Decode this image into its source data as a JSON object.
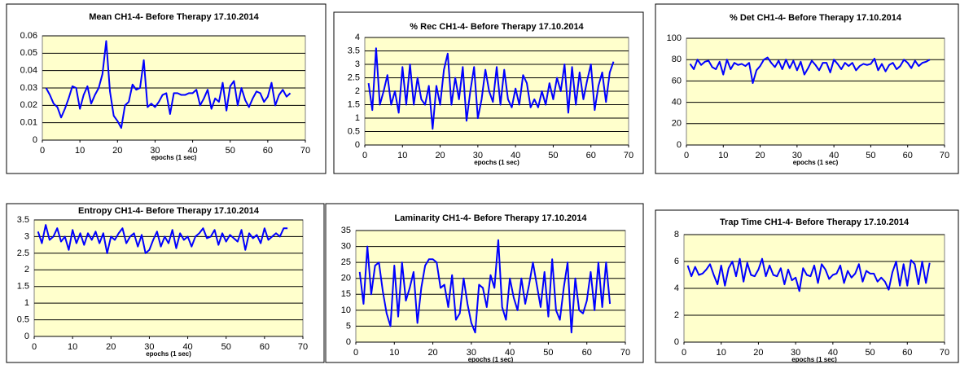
{
  "chart_data": [
    {
      "type": "line",
      "title": "Mean CH1-4- Before Therapy 17.10.2014",
      "x_label": "epochs (1 sec)",
      "x": [
        1,
        2,
        3,
        4,
        5,
        6,
        7,
        8,
        9,
        10,
        11,
        12,
        13,
        14,
        15,
        16,
        17,
        18,
        19,
        20,
        21,
        22,
        23,
        24,
        25,
        26,
        27,
        28,
        29,
        30,
        31,
        32,
        33,
        34,
        35,
        36,
        37,
        38,
        39,
        40,
        41,
        42,
        43,
        44,
        45,
        46,
        47,
        48,
        49,
        50,
        51,
        52,
        53,
        54,
        55,
        56,
        57,
        58,
        59,
        60,
        61,
        62,
        63,
        64,
        65,
        66
      ],
      "series": [
        {
          "color": "#0000ff",
          "values": [
            0.03,
            0.026,
            0.021,
            0.019,
            0.013,
            0.018,
            0.024,
            0.031,
            0.03,
            0.018,
            0.026,
            0.031,
            0.021,
            0.026,
            0.03,
            0.038,
            0.057,
            0.028,
            0.014,
            0.011,
            0.007,
            0.02,
            0.022,
            0.032,
            0.029,
            0.03,
            0.046,
            0.019,
            0.021,
            0.019,
            0.022,
            0.026,
            0.027,
            0.015,
            0.027,
            0.027,
            0.026,
            0.026,
            0.027,
            0.027,
            0.029,
            0.02,
            0.024,
            0.029,
            0.018,
            0.024,
            0.022,
            0.033,
            0.017,
            0.031,
            0.034,
            0.02,
            0.03,
            0.023,
            0.019,
            0.024,
            0.028,
            0.027,
            0.022,
            0.025,
            0.033,
            0.02,
            0.026,
            0.029,
            0.025,
            0.027
          ]
        }
      ],
      "xlim": [
        0,
        70
      ],
      "xticks": [
        0,
        10,
        20,
        30,
        40,
        50,
        60,
        70
      ],
      "ylim": [
        0,
        0.06
      ],
      "yticks": [
        0,
        0.01,
        0.02,
        0.03,
        0.04,
        0.05,
        0.06
      ],
      "grid": true
    },
    {
      "type": "line",
      "title": "% Rec CH1-4- Before Therapy 17.10.2014",
      "x_label": "epochs (1 sec)",
      "x": [
        1,
        2,
        3,
        4,
        5,
        6,
        7,
        8,
        9,
        10,
        11,
        12,
        13,
        14,
        15,
        16,
        17,
        18,
        19,
        20,
        21,
        22,
        23,
        24,
        25,
        26,
        27,
        28,
        29,
        30,
        31,
        32,
        33,
        34,
        35,
        36,
        37,
        38,
        39,
        40,
        41,
        42,
        43,
        44,
        45,
        46,
        47,
        48,
        49,
        50,
        51,
        52,
        53,
        54,
        55,
        56,
        57,
        58,
        59,
        60,
        61,
        62,
        63,
        64,
        65,
        66
      ],
      "series": [
        {
          "color": "#0000ff",
          "values": [
            2.3,
            1.3,
            3.6,
            1.5,
            2.0,
            2.6,
            1.5,
            2.0,
            1.2,
            2.9,
            1.5,
            3.0,
            1.5,
            2.5,
            1.7,
            1.5,
            2.2,
            0.6,
            2.2,
            1.5,
            2.8,
            3.4,
            1.5,
            2.5,
            1.7,
            2.9,
            0.9,
            2.0,
            2.9,
            1.0,
            1.7,
            2.8,
            2.0,
            1.6,
            2.9,
            1.5,
            2.8,
            1.7,
            1.4,
            2.1,
            1.5,
            2.6,
            2.3,
            1.4,
            1.7,
            1.4,
            2.0,
            1.5,
            2.3,
            1.7,
            2.5,
            2.0,
            3.0,
            1.2,
            2.9,
            1.5,
            2.7,
            1.7,
            2.4,
            3.0,
            1.3,
            2.2,
            2.7,
            1.6,
            2.7,
            3.1
          ]
        }
      ],
      "xlim": [
        0,
        70
      ],
      "xticks": [
        0,
        10,
        20,
        30,
        40,
        50,
        60,
        70
      ],
      "ylim": [
        0,
        4
      ],
      "yticks": [
        0,
        0.5,
        1,
        1.5,
        2,
        2.5,
        3,
        3.5,
        4
      ],
      "grid": true
    },
    {
      "type": "line",
      "title": "% Det CH1-4- Before Therapy 17.10.2014",
      "x_label": "epochs (1 sec)",
      "x": [
        1,
        2,
        3,
        4,
        5,
        6,
        7,
        8,
        9,
        10,
        11,
        12,
        13,
        14,
        15,
        16,
        17,
        18,
        19,
        20,
        21,
        22,
        23,
        24,
        25,
        26,
        27,
        28,
        29,
        30,
        31,
        32,
        33,
        34,
        35,
        36,
        37,
        38,
        39,
        40,
        41,
        42,
        43,
        44,
        45,
        46,
        47,
        48,
        49,
        50,
        51,
        52,
        53,
        54,
        55,
        56,
        57,
        58,
        59,
        60,
        61,
        62,
        63,
        64,
        65,
        66
      ],
      "series": [
        {
          "color": "#0000ff",
          "values": [
            76,
            71,
            80,
            75,
            78,
            79,
            73,
            71,
            78,
            66,
            80,
            71,
            77,
            75,
            76,
            74,
            77,
            58,
            70,
            74,
            80,
            82,
            77,
            73,
            79,
            71,
            80,
            72,
            79,
            70,
            78,
            66,
            72,
            79,
            75,
            70,
            77,
            77,
            68,
            80,
            76,
            71,
            77,
            74,
            77,
            70,
            74,
            76,
            75,
            76,
            81,
            70,
            76,
            69,
            75,
            77,
            71,
            74,
            80,
            77,
            72,
            79,
            74,
            77,
            78,
            80
          ]
        }
      ],
      "xlim": [
        0,
        70
      ],
      "xticks": [
        0,
        10,
        20,
        30,
        40,
        50,
        60,
        70
      ],
      "ylim": [
        0,
        100
      ],
      "yticks": [
        0,
        20,
        40,
        60,
        80,
        100
      ],
      "grid": true
    },
    {
      "type": "line",
      "title": "Entropy CH1-4- Before Therapy 17.10.2014",
      "x_label": "epochs (1 sec)",
      "x": [
        1,
        2,
        3,
        4,
        5,
        6,
        7,
        8,
        9,
        10,
        11,
        12,
        13,
        14,
        15,
        16,
        17,
        18,
        19,
        20,
        21,
        22,
        23,
        24,
        25,
        26,
        27,
        28,
        29,
        30,
        31,
        32,
        33,
        34,
        35,
        36,
        37,
        38,
        39,
        40,
        41,
        42,
        43,
        44,
        45,
        46,
        47,
        48,
        49,
        50,
        51,
        52,
        53,
        54,
        55,
        56,
        57,
        58,
        59,
        60,
        61,
        62,
        63,
        64,
        65,
        66
      ],
      "series": [
        {
          "color": "#0000ff",
          "values": [
            3.15,
            2.8,
            3.35,
            2.9,
            3.0,
            3.25,
            2.85,
            3.0,
            2.6,
            3.2,
            2.8,
            3.1,
            2.75,
            3.1,
            2.9,
            3.15,
            2.8,
            3.1,
            2.5,
            3.0,
            2.9,
            3.1,
            3.25,
            2.8,
            3.0,
            3.1,
            2.7,
            3.05,
            2.5,
            2.6,
            2.9,
            3.15,
            2.7,
            3.0,
            2.8,
            3.2,
            2.65,
            3.1,
            2.9,
            3.0,
            2.7,
            3.0,
            3.1,
            3.25,
            2.95,
            3.0,
            3.2,
            2.75,
            3.1,
            2.85,
            3.05,
            2.95,
            2.85,
            3.2,
            2.6,
            3.1,
            2.95,
            3.05,
            2.8,
            3.25,
            2.9,
            3.0,
            3.1,
            3.0,
            3.25,
            3.25
          ]
        }
      ],
      "xlim": [
        0,
        70
      ],
      "xticks": [
        0,
        10,
        20,
        30,
        40,
        50,
        60,
        70
      ],
      "ylim": [
        0,
        3.5
      ],
      "yticks": [
        0,
        0.5,
        1,
        1.5,
        2,
        2.5,
        3,
        3.5
      ],
      "grid": true
    },
    {
      "type": "line",
      "title": "Laminarity CH1-4- Before Therapy 17.10.2014",
      "x_label": "epochs (1 sec)",
      "x": [
        1,
        2,
        3,
        4,
        5,
        6,
        7,
        8,
        9,
        10,
        11,
        12,
        13,
        14,
        15,
        16,
        17,
        18,
        19,
        20,
        21,
        22,
        23,
        24,
        25,
        26,
        27,
        28,
        29,
        30,
        31,
        32,
        33,
        34,
        35,
        36,
        37,
        38,
        39,
        40,
        41,
        42,
        43,
        44,
        45,
        46,
        47,
        48,
        49,
        50,
        51,
        52,
        53,
        54,
        55,
        56,
        57,
        58,
        59,
        60,
        61,
        62,
        63,
        64,
        65,
        66
      ],
      "series": [
        {
          "color": "#0000ff",
          "values": [
            22,
            12,
            30,
            15,
            24,
            25,
            16,
            9,
            5,
            24,
            8,
            25,
            13,
            17,
            22,
            6,
            17,
            24,
            26,
            26,
            25,
            17,
            18,
            11,
            21,
            7,
            9,
            20,
            12,
            6,
            3,
            18,
            17,
            11,
            21,
            17,
            32,
            11,
            7,
            20,
            14,
            10,
            20,
            12,
            18,
            25,
            18,
            11,
            22,
            8,
            26,
            10,
            7,
            17,
            25,
            3,
            20,
            10,
            9,
            13,
            22,
            10,
            25,
            11,
            25,
            12
          ]
        }
      ],
      "xlim": [
        0,
        70
      ],
      "xticks": [
        0,
        10,
        20,
        30,
        40,
        50,
        60,
        70
      ],
      "ylim": [
        0,
        35
      ],
      "yticks": [
        0,
        5,
        10,
        15,
        20,
        25,
        30,
        35
      ],
      "grid": true
    },
    {
      "type": "line",
      "title": "Trap Time CH1-4- Before Therapy 17.10.2014",
      "x_label": "epochs (1 sec)",
      "x": [
        1,
        2,
        3,
        4,
        5,
        6,
        7,
        8,
        9,
        10,
        11,
        12,
        13,
        14,
        15,
        16,
        17,
        18,
        19,
        20,
        21,
        22,
        23,
        24,
        25,
        26,
        27,
        28,
        29,
        30,
        31,
        32,
        33,
        34,
        35,
        36,
        37,
        38,
        39,
        40,
        41,
        42,
        43,
        44,
        45,
        46,
        47,
        48,
        49,
        50,
        51,
        52,
        53,
        54,
        55,
        56,
        57,
        58,
        59,
        60,
        61,
        62,
        63,
        64,
        65,
        66
      ],
      "series": [
        {
          "color": "#0000ff",
          "values": [
            5.7,
            4.9,
            5.6,
            5.0,
            5.1,
            5.4,
            5.8,
            5.0,
            4.3,
            5.7,
            4.2,
            5.5,
            6.0,
            4.9,
            6.2,
            4.5,
            5.9,
            5.0,
            4.9,
            5.4,
            6.2,
            4.9,
            5.7,
            5.0,
            4.9,
            5.5,
            4.3,
            5.4,
            4.6,
            4.8,
            3.8,
            5.5,
            5.0,
            4.9,
            5.7,
            4.4,
            5.8,
            5.4,
            4.7,
            5.0,
            5.1,
            5.7,
            4.4,
            5.3,
            4.8,
            5.1,
            5.8,
            4.5,
            5.3,
            5.1,
            5.1,
            4.5,
            4.8,
            4.5,
            3.9,
            5.2,
            6.0,
            4.2,
            5.8,
            4.2,
            6.1,
            5.8,
            4.3,
            6.0,
            4.4,
            5.9
          ]
        }
      ],
      "xlim": [
        0,
        70
      ],
      "xticks": [
        0,
        10,
        20,
        30,
        40,
        50,
        60,
        70
      ],
      "ylim": [
        0,
        8
      ],
      "yticks": [
        0,
        2,
        4,
        6,
        8
      ],
      "grid": true
    }
  ]
}
